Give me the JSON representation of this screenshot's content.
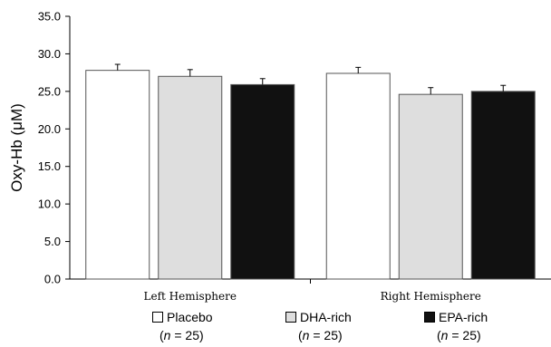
{
  "chart_data": {
    "type": "bar",
    "ylabel": "Oxy-Hb (μM)",
    "ylim": [
      0,
      35
    ],
    "yticks": [
      "0.0",
      "5.0",
      "10.0",
      "15.0",
      "20.0",
      "25.0",
      "30.0",
      "35.0"
    ],
    "categories": [
      "Left Hemisphere",
      "Right Hemisphere"
    ],
    "series": [
      {
        "name": "Placebo",
        "n_label": "(n = 25)",
        "color": "#ffffff",
        "values": [
          27.8,
          27.4
        ],
        "errors": [
          0.8,
          0.8
        ]
      },
      {
        "name": "DHA-rich",
        "n_label": "(n = 25)",
        "color": "#dedede",
        "values": [
          27.0,
          24.6
        ],
        "errors": [
          0.9,
          0.9
        ]
      },
      {
        "name": "EPA-rich",
        "n_label": "(n = 25)",
        "color": "#111111",
        "values": [
          25.9,
          25.0
        ],
        "errors": [
          0.8,
          0.8
        ]
      }
    ],
    "grid": false,
    "legend_position": "bottom"
  }
}
